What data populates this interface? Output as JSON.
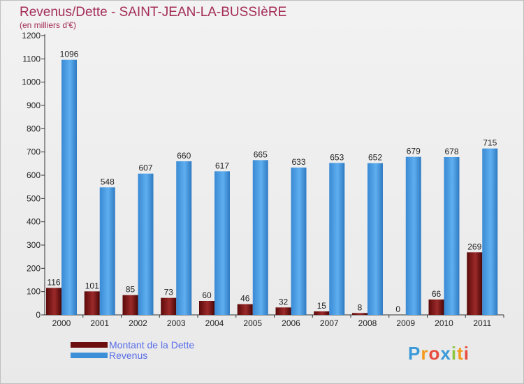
{
  "title": "Revenus/Dette - SAINT-JEAN-LA-BUSSIèRE",
  "subtitle": "(en milliers d'€)",
  "logo": {
    "text": "Proxiti",
    "letters": [
      {
        "ch": "P",
        "color": "#3a9ad9"
      },
      {
        "ch": "r",
        "color": "#f29b1e"
      },
      {
        "ch": "o",
        "color": "#e84c3d"
      },
      {
        "ch": "x",
        "color": "#3a9ad9"
      },
      {
        "ch": "i",
        "color": "#8cc63f"
      },
      {
        "ch": "t",
        "color": "#f29b1e"
      },
      {
        "ch": "i",
        "color": "#e84c3d"
      }
    ]
  },
  "chart_data": {
    "type": "bar",
    "categories": [
      "2000",
      "2001",
      "2002",
      "2003",
      "2004",
      "2005",
      "2006",
      "2007",
      "2008",
      "2009",
      "2010",
      "2011"
    ],
    "series": [
      {
        "name": "Montant de la Dette",
        "color": "#7a1414",
        "values": [
          116,
          101,
          85,
          73,
          60,
          46,
          32,
          15,
          8,
          0,
          66,
          269
        ]
      },
      {
        "name": "Revenus",
        "color": "#3d8fd8",
        "values": [
          1096,
          548,
          607,
          660,
          617,
          665,
          633,
          653,
          652,
          679,
          678,
          715
        ]
      }
    ],
    "ylim": [
      0,
      1200
    ],
    "yticks": [
      "0",
      "100",
      "200",
      "300",
      "400",
      "500",
      "600",
      "700",
      "800",
      "900",
      "1000",
      "1100",
      "1200"
    ],
    "grid": false,
    "legend": "bottom-left"
  }
}
